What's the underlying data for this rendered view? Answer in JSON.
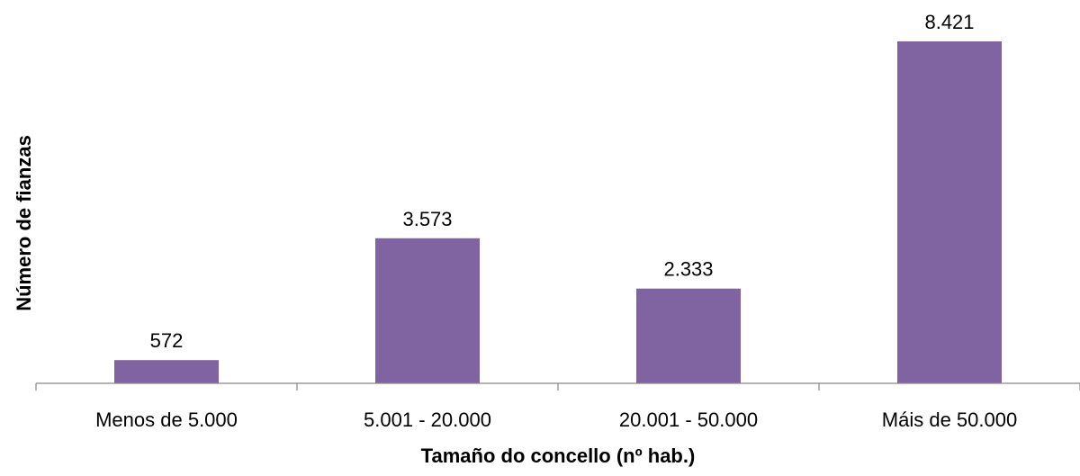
{
  "chart_data": {
    "type": "bar",
    "title": "",
    "xlabel": "Tamaño do concello (nº hab.)",
    "ylabel": "Número de fianzas",
    "categories": [
      "Menos de 5.000",
      "5.001 - 20.000",
      "20.001 - 50.000",
      "Máis de 50.000"
    ],
    "values": [
      572,
      3573,
      2333,
      8421
    ],
    "value_labels": [
      "572",
      "3.573",
      "2.333",
      "8.421"
    ],
    "ylim": [
      0,
      8421
    ],
    "grid": false,
    "legend": "none",
    "colors": {
      "bar": "#8064a2",
      "axis": "#878787"
    }
  }
}
